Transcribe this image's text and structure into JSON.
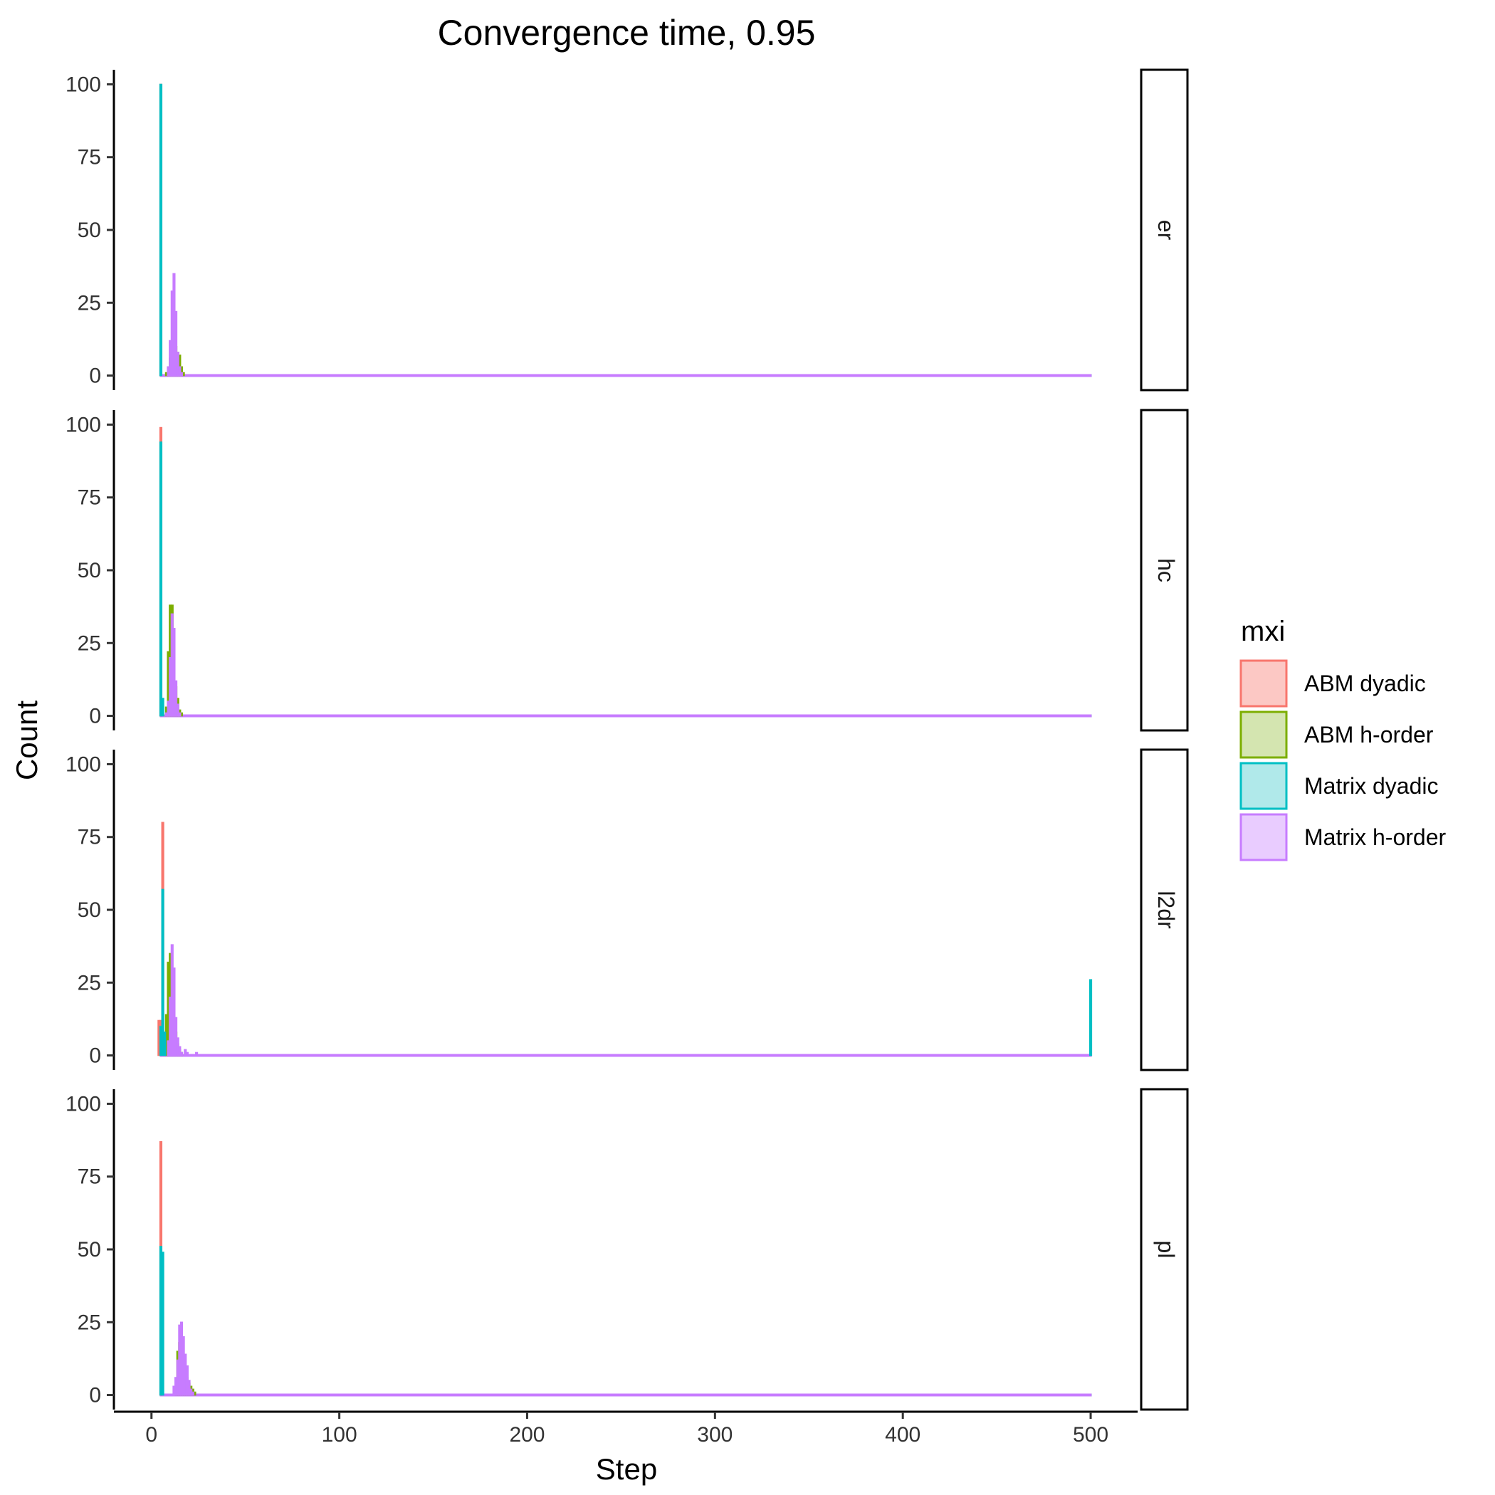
{
  "chart_data": {
    "type": "histogram",
    "title": "Convergence time, 0.95",
    "xlabel": "Step",
    "ylabel": "Count",
    "xlim": [
      -20,
      525
    ],
    "ylim": [
      -5,
      105
    ],
    "x_ticks": [
      0,
      100,
      200,
      300,
      400,
      500
    ],
    "y_ticks": [
      0,
      25,
      50,
      75,
      100
    ],
    "bin_width": 1,
    "grid": false,
    "legend": {
      "title": "mxi",
      "position": "right",
      "entries": [
        {
          "label": "ABM dyadic",
          "color": "#F8766D",
          "fill": "#FCC8C4"
        },
        {
          "label": "ABM h-order",
          "color": "#7CAE00",
          "fill": "#D4E5B0"
        },
        {
          "label": "Matrix dyadic",
          "color": "#00BFC4",
          "fill": "#B0E9EA"
        },
        {
          "label": "Matrix h-order",
          "color": "#C77CFF",
          "fill": "#E9CCFF"
        }
      ]
    },
    "x_range_drawn": [
      5,
      500
    ],
    "panels": [
      {
        "label": "er",
        "series": {
          "ABM dyadic": [
            [
              5,
              100
            ]
          ],
          "ABM h-order": [
            [
              8,
              1
            ],
            [
              9,
              3
            ],
            [
              10,
              6
            ],
            [
              11,
              10
            ],
            [
              12,
              12
            ],
            [
              13,
              10
            ],
            [
              14,
              8
            ],
            [
              15,
              7
            ],
            [
              16,
              3
            ],
            [
              17,
              1
            ]
          ],
          "Matrix dyadic": [
            [
              5,
              100
            ]
          ],
          "Matrix h-order": [
            [
              9,
              3
            ],
            [
              10,
              12
            ],
            [
              11,
              29
            ],
            [
              12,
              35
            ],
            [
              13,
              22
            ],
            [
              14,
              8
            ],
            [
              15,
              3
            ],
            [
              16,
              1
            ]
          ]
        }
      },
      {
        "label": "hc",
        "series": {
          "ABM dyadic": [
            [
              5,
              99
            ]
          ],
          "ABM h-order": [
            [
              8,
              3
            ],
            [
              9,
              22
            ],
            [
              10,
              38
            ],
            [
              11,
              38
            ],
            [
              12,
              20
            ],
            [
              13,
              10
            ],
            [
              14,
              6
            ],
            [
              15,
              2
            ],
            [
              16,
              1
            ]
          ],
          "Matrix dyadic": [
            [
              5,
              94
            ],
            [
              6,
              6
            ]
          ],
          "Matrix h-order": [
            [
              8,
              1
            ],
            [
              9,
              5
            ],
            [
              10,
              20
            ],
            [
              11,
              35
            ],
            [
              12,
              30
            ],
            [
              13,
              12
            ],
            [
              14,
              4
            ],
            [
              15,
              1
            ]
          ]
        }
      },
      {
        "label": "l2dr",
        "series": {
          "ABM dyadic": [
            [
              4,
              12
            ],
            [
              5,
              12
            ],
            [
              6,
              80
            ],
            [
              7,
              6
            ]
          ],
          "ABM h-order": [
            [
              8,
              14
            ],
            [
              9,
              32
            ],
            [
              10,
              35
            ],
            [
              11,
              26
            ],
            [
              12,
              15
            ],
            [
              13,
              8
            ],
            [
              14,
              4
            ],
            [
              15,
              2
            ],
            [
              16,
              1
            ]
          ],
          "Matrix dyadic": [
            [
              5,
              10
            ],
            [
              6,
              57
            ],
            [
              7,
              8
            ],
            [
              500,
              26
            ]
          ],
          "Matrix h-order": [
            [
              9,
              5
            ],
            [
              10,
              20
            ],
            [
              11,
              38
            ],
            [
              12,
              30
            ],
            [
              13,
              13
            ],
            [
              14,
              6
            ],
            [
              15,
              3
            ],
            [
              16,
              1
            ],
            [
              18,
              2
            ],
            [
              19,
              1
            ],
            [
              24,
              1
            ]
          ]
        }
      },
      {
        "label": "pl",
        "series": {
          "ABM dyadic": [
            [
              5,
              87
            ]
          ],
          "ABM h-order": [
            [
              13,
              5
            ],
            [
              14,
              15
            ],
            [
              15,
              18
            ],
            [
              16,
              14
            ],
            [
              17,
              10
            ],
            [
              18,
              8
            ],
            [
              19,
              6
            ],
            [
              20,
              4
            ],
            [
              21,
              3
            ],
            [
              22,
              2
            ],
            [
              23,
              1
            ]
          ],
          "Matrix dyadic": [
            [
              5,
              51
            ],
            [
              6,
              49
            ]
          ],
          "Matrix h-order": [
            [
              12,
              3
            ],
            [
              13,
              6
            ],
            [
              14,
              12
            ],
            [
              15,
              24
            ],
            [
              16,
              25
            ],
            [
              17,
              20
            ],
            [
              18,
              14
            ],
            [
              19,
              10
            ],
            [
              20,
              5
            ],
            [
              21,
              2
            ],
            [
              22,
              1
            ]
          ]
        }
      }
    ]
  }
}
